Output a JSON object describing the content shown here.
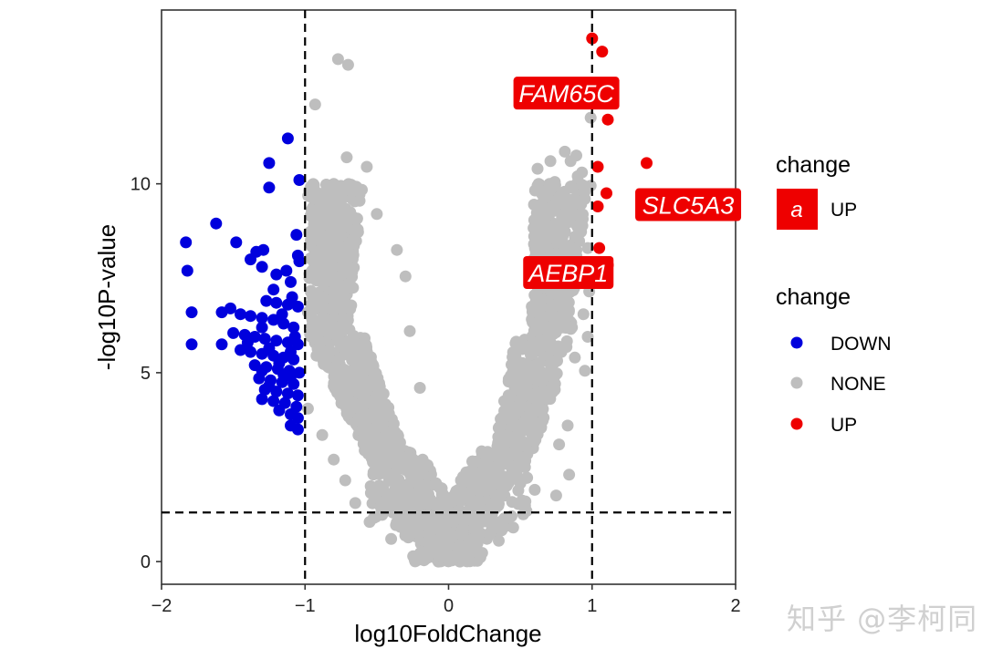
{
  "chart_data": {
    "type": "scatter",
    "subtype": "volcano",
    "title": "",
    "xlabel": "log10FoldChange",
    "ylabel": "-log10P-value",
    "xlim": [
      -2,
      2
    ],
    "ylim": [
      -0.6,
      14.6
    ],
    "xticks": [
      -2,
      -1,
      0,
      1,
      2
    ],
    "xtick_labels": [
      "−2",
      "−1",
      "0",
      "1",
      "2"
    ],
    "yticks": [
      0,
      5,
      10
    ],
    "ytick_labels": [
      "0",
      "5",
      "10"
    ],
    "grid": false,
    "thresholds": {
      "x": [
        -1,
        1
      ],
      "y": 1.3,
      "linestyle": "dashed"
    },
    "colors": {
      "DOWN": "#0000dd",
      "NONE": "#bebebe",
      "UP": "#ee0000",
      "label_box": "#ee0000"
    },
    "legends": [
      {
        "title": "change",
        "entries": [
          {
            "key": "a",
            "label": "UP"
          }
        ]
      },
      {
        "title": "change",
        "entries": [
          {
            "label": "DOWN"
          },
          {
            "label": "NONE"
          },
          {
            "label": "UP"
          }
        ]
      }
    ],
    "legend_position": "right",
    "series": [
      {
        "name": "DOWN",
        "points": [
          [
            -1.83,
            8.45
          ],
          [
            -1.82,
            7.7
          ],
          [
            -1.79,
            6.6
          ],
          [
            -1.79,
            5.75
          ],
          [
            -1.62,
            8.95
          ],
          [
            -1.58,
            6.6
          ],
          [
            -1.48,
            8.45
          ],
          [
            -1.38,
            8.0
          ],
          [
            -1.34,
            8.2
          ],
          [
            -1.29,
            8.25
          ],
          [
            -1.25,
            10.55
          ],
          [
            -1.25,
            9.9
          ],
          [
            -1.12,
            11.2
          ],
          [
            -1.04,
            10.1
          ],
          [
            -1.06,
            8.65
          ],
          [
            -1.05,
            8.1
          ],
          [
            -1.04,
            7.95
          ],
          [
            -1.3,
            7.8
          ],
          [
            -1.2,
            7.6
          ],
          [
            -1.1,
            7.4
          ],
          [
            -1.27,
            6.9
          ],
          [
            -1.2,
            6.85
          ],
          [
            -1.12,
            6.8
          ],
          [
            -1.05,
            6.75
          ],
          [
            -1.52,
            6.7
          ],
          [
            -1.45,
            6.55
          ],
          [
            -1.38,
            6.5
          ],
          [
            -1.3,
            6.45
          ],
          [
            -1.22,
            6.4
          ],
          [
            -1.15,
            6.3
          ],
          [
            -1.08,
            6.2
          ],
          [
            -1.5,
            6.05
          ],
          [
            -1.42,
            6.0
          ],
          [
            -1.35,
            5.95
          ],
          [
            -1.28,
            5.9
          ],
          [
            -1.2,
            5.85
          ],
          [
            -1.12,
            5.8
          ],
          [
            -1.05,
            5.75
          ],
          [
            -1.58,
            5.75
          ],
          [
            -1.45,
            5.6
          ],
          [
            -1.38,
            5.55
          ],
          [
            -1.3,
            5.5
          ],
          [
            -1.22,
            5.45
          ],
          [
            -1.15,
            5.4
          ],
          [
            -1.08,
            5.35
          ],
          [
            -1.35,
            5.2
          ],
          [
            -1.27,
            5.15
          ],
          [
            -1.19,
            5.1
          ],
          [
            -1.11,
            5.05
          ],
          [
            -1.04,
            5.0
          ],
          [
            -1.32,
            4.85
          ],
          [
            -1.24,
            4.8
          ],
          [
            -1.16,
            4.75
          ],
          [
            -1.08,
            4.7
          ],
          [
            -1.28,
            4.55
          ],
          [
            -1.2,
            4.5
          ],
          [
            -1.12,
            4.45
          ],
          [
            -1.05,
            4.4
          ],
          [
            -1.3,
            4.3
          ],
          [
            -1.22,
            4.25
          ],
          [
            -1.14,
            4.2
          ],
          [
            -1.06,
            4.1
          ],
          [
            -1.18,
            4.0
          ],
          [
            -1.1,
            3.9
          ],
          [
            -1.05,
            3.8
          ],
          [
            -1.1,
            3.6
          ],
          [
            -1.05,
            3.5
          ],
          [
            -1.15,
            4.95
          ],
          [
            -1.1,
            4.9
          ],
          [
            -1.18,
            5.25
          ],
          [
            -1.1,
            5.55
          ],
          [
            -1.25,
            5.65
          ],
          [
            -1.4,
            5.8
          ],
          [
            -1.3,
            6.2
          ],
          [
            -1.16,
            6.55
          ],
          [
            -1.09,
            7.0
          ],
          [
            -1.22,
            7.2
          ],
          [
            -1.13,
            7.7
          ],
          [
            -1.07,
            5.95
          ],
          [
            -1.25,
            4.65
          ],
          [
            -1.3,
            5.05
          ]
        ]
      },
      {
        "name": "NONE",
        "points": [
          [
            -0.77,
            13.3
          ],
          [
            -0.7,
            13.15
          ],
          [
            -0.93,
            12.1
          ],
          [
            -0.71,
            10.7
          ],
          [
            -0.57,
            10.45
          ],
          [
            -0.8,
            10.0
          ],
          [
            -0.85,
            9.75
          ],
          [
            -0.74,
            9.6
          ],
          [
            -0.62,
            9.55
          ],
          [
            -0.9,
            9.35
          ],
          [
            -0.5,
            9.2
          ],
          [
            -0.96,
            8.5
          ],
          [
            -0.36,
            8.25
          ],
          [
            -0.3,
            7.55
          ],
          [
            -0.95,
            7.7
          ],
          [
            -0.98,
            6.6
          ],
          [
            -0.27,
            6.1
          ],
          [
            -0.2,
            4.6
          ],
          [
            -0.92,
            5.45
          ],
          [
            -0.98,
            4.05
          ],
          [
            0.99,
            11.75
          ],
          [
            0.81,
            10.85
          ],
          [
            0.71,
            10.6
          ],
          [
            0.89,
            10.75
          ],
          [
            0.62,
            10.4
          ],
          [
            0.9,
            10.2
          ],
          [
            0.74,
            10.05
          ],
          [
            0.86,
            9.9
          ],
          [
            0.95,
            9.8
          ],
          [
            0.68,
            9.65
          ],
          [
            0.82,
            9.4
          ],
          [
            0.92,
            9.2
          ],
          [
            0.76,
            8.9
          ],
          [
            0.88,
            8.6
          ],
          [
            0.97,
            8.3
          ],
          [
            0.7,
            8.05
          ],
          [
            0.85,
            7.7
          ],
          [
            0.92,
            7.45
          ],
          [
            0.98,
            7.15
          ],
          [
            0.8,
            6.95
          ],
          [
            0.94,
            6.55
          ],
          [
            0.86,
            6.2
          ],
          [
            0.97,
            5.95
          ],
          [
            0.88,
            5.4
          ],
          [
            0.95,
            5.05
          ],
          [
            0.74,
            4.55
          ],
          [
            0.83,
            3.6
          ],
          [
            0.77,
            3.1
          ],
          [
            0.84,
            2.3
          ],
          [
            0.75,
            1.75
          ],
          [
            0.52,
            1.25
          ],
          [
            0.45,
            0.9
          ],
          [
            -0.55,
            1.05
          ],
          [
            -0.65,
            1.55
          ],
          [
            -0.72,
            2.15
          ],
          [
            -0.8,
            2.7
          ],
          [
            -0.88,
            3.35
          ],
          [
            0.35,
            0.55
          ],
          [
            -0.4,
            0.6
          ],
          [
            0.6,
            1.9
          ],
          [
            0.62,
            9.95
          ],
          [
            0.72,
            9.3
          ],
          [
            0.8,
            8.4
          ],
          [
            0.9,
            8.85
          ],
          [
            0.65,
            7.9
          ],
          [
            0.78,
            7.3
          ],
          [
            0.58,
            6.75
          ],
          [
            0.66,
            6.4
          ],
          [
            0.55,
            5.65
          ],
          [
            0.95,
            9.6
          ],
          [
            0.99,
            9.95
          ],
          [
            0.93,
            10.3
          ],
          [
            0.85,
            10.6
          ],
          [
            0.99,
            7.6
          ]
        ],
        "bands": [
          {
            "y_range": [
              0,
              3
            ],
            "x_left": [
              0.01,
              -0.6
            ],
            "x_right": [
              0.01,
              0.6
            ]
          },
          {
            "y_range": [
              3,
              6
            ],
            "x_left": [
              -0.6,
              -0.97
            ],
            "x_right": [
              0.6,
              0.85
            ]
          },
          {
            "y_range": [
              6,
              10
            ],
            "x_left": [
              -0.97,
              -0.98
            ],
            "x_right": [
              0.85,
              0.97
            ]
          }
        ]
      },
      {
        "name": "UP",
        "points": [
          [
            1.0,
            13.85
          ],
          [
            1.07,
            13.5
          ],
          [
            1.11,
            11.7
          ],
          [
            1.38,
            10.55
          ],
          [
            1.04,
            10.45
          ],
          [
            1.1,
            9.75
          ],
          [
            1.04,
            9.4
          ],
          [
            1.05,
            8.3
          ],
          [
            1.11,
            7.85
          ]
        ]
      }
    ],
    "annotations": [
      {
        "text": "FAM65C",
        "x": 0.91,
        "y": 13.8
      },
      {
        "text": "SLC5A3",
        "x": 1.11,
        "y": 9.4
      },
      {
        "text": "AEBP1",
        "x": 1.0,
        "y": 7.7
      }
    ]
  },
  "watermark": "知乎 @李柯同"
}
